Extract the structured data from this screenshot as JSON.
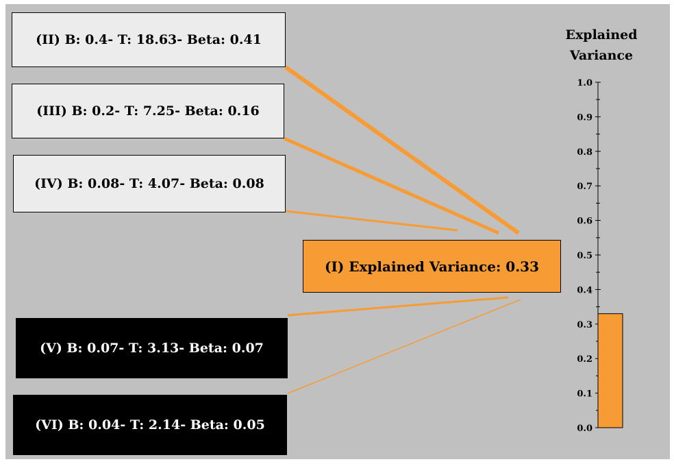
{
  "predictors": [
    {
      "id": "II",
      "label": "(II) B: 0.4- T: 18.63- Beta: 0.41",
      "beta": 0.41,
      "style": "light"
    },
    {
      "id": "III",
      "label": "(III) B: 0.2- T: 7.25- Beta: 0.16",
      "beta": 0.16,
      "style": "light"
    },
    {
      "id": "IV",
      "label": "(IV) B: 0.08- T: 4.07- Beta: 0.08",
      "beta": 0.08,
      "style": "light"
    },
    {
      "id": "V",
      "label": "(V) B: 0.07- T: 3.13- Beta: 0.07",
      "beta": 0.07,
      "style": "dark"
    },
    {
      "id": "VI",
      "label": "(VI) B: 0.04- T: 2.14- Beta: 0.05",
      "beta": 0.05,
      "style": "dark"
    }
  ],
  "outcome": {
    "label": "(I) Explained Variance: 0.33",
    "value": 0.33
  },
  "gauge": {
    "title_line1": "Explained",
    "title_line2": "Variance",
    "min": 0.0,
    "max": 1.0,
    "ticks": [
      "0.0",
      "0.1",
      "0.2",
      "0.3",
      "0.4",
      "0.5",
      "0.6",
      "0.7",
      "0.8",
      "0.9",
      "1.0"
    ],
    "value": 0.33
  },
  "colors": {
    "accent": "#f79b35",
    "background": "#c0c0c0",
    "light_box": "#ececec",
    "dark_box": "#000000"
  }
}
